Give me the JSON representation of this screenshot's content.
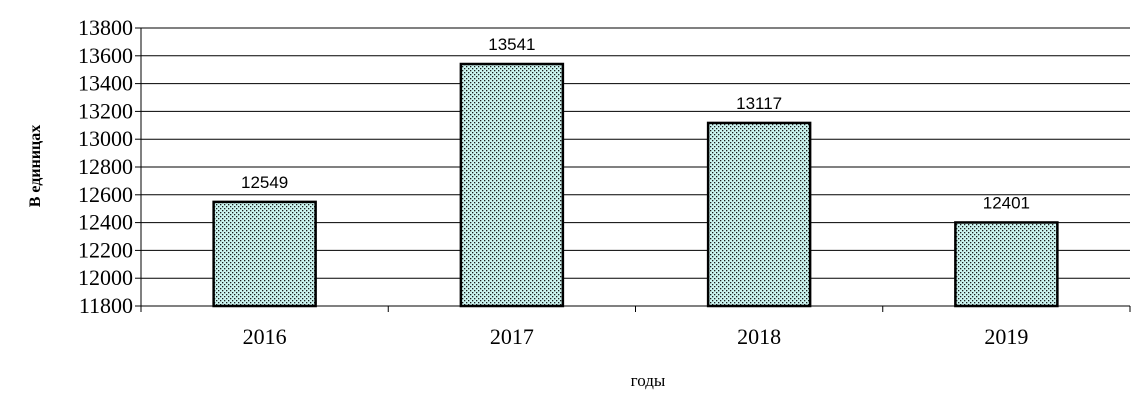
{
  "chart_data": {
    "type": "bar",
    "categories": [
      "2016",
      "2017",
      "2018",
      "2019"
    ],
    "values": [
      12549,
      13541,
      13117,
      12401
    ],
    "data_labels": [
      "12549",
      "13541",
      "13117",
      "12401"
    ],
    "title": "",
    "xlabel": "годы",
    "ylabel": "В единицах",
    "ylim": [
      11800,
      13800
    ],
    "yticks": [
      11800,
      12000,
      12200,
      12400,
      12600,
      12800,
      13000,
      13200,
      13400,
      13600,
      13800
    ],
    "grid": true,
    "legend": "none",
    "bar_color": "#ccf5f0",
    "bar_pattern": "dotted",
    "bar_edge_color": "#000000"
  }
}
